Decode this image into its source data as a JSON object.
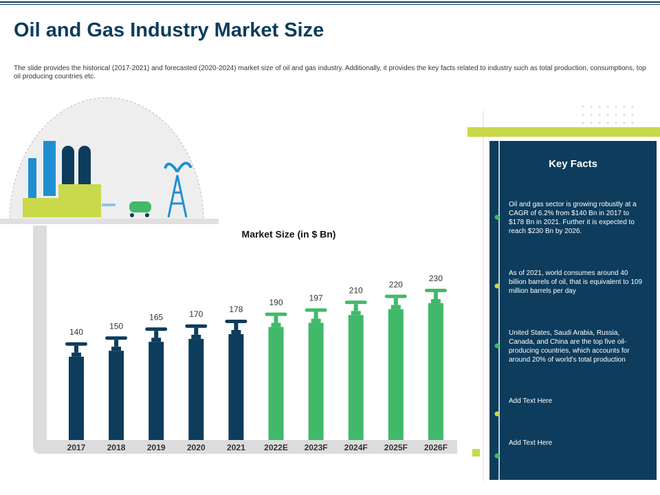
{
  "title": "Oil and Gas Industry Market Size",
  "description": "The slide provides the historical (2017-2021) and forecasted (2020-2024) market size of oil and gas industry. Additionally, it provides the key facts related to industry such as total production, consumptions, top oil producing countries etc.",
  "key_facts": {
    "title": "Key Facts",
    "items": [
      "Oil and gas sector is growing robustly at a CAGR of 6.2% from $140 Bn in 2017 to $178 Bn in 2021. Further it is expected to reach $230 Bn by 2026.",
      "As of 2021, world consumes around 40 billion barrels of oil, that is equivalent to 109 million barrels per day",
      "United States, Saudi Arabia, Russia, Canada, and China are the top five oil-producing countries, which accounts for around 20% of world's total production",
      "Add Text Here",
      "Add Text Here"
    ]
  },
  "chart_data": {
    "type": "bar",
    "title": "Market Size (in $ Bn)",
    "categories": [
      "2017",
      "2018",
      "2019",
      "2020",
      "2021",
      "2022E",
      "2023F",
      "2024F",
      "2025F",
      "2026F"
    ],
    "values": [
      140,
      150,
      165,
      170,
      178,
      190,
      197,
      210,
      220,
      230
    ],
    "colors": [
      "#0d3c5c",
      "#0d3c5c",
      "#0d3c5c",
      "#0d3c5c",
      "#0d3c5c",
      "#41b96a",
      "#41b96a",
      "#41b96a",
      "#41b96a",
      "#41b96a"
    ]
  }
}
